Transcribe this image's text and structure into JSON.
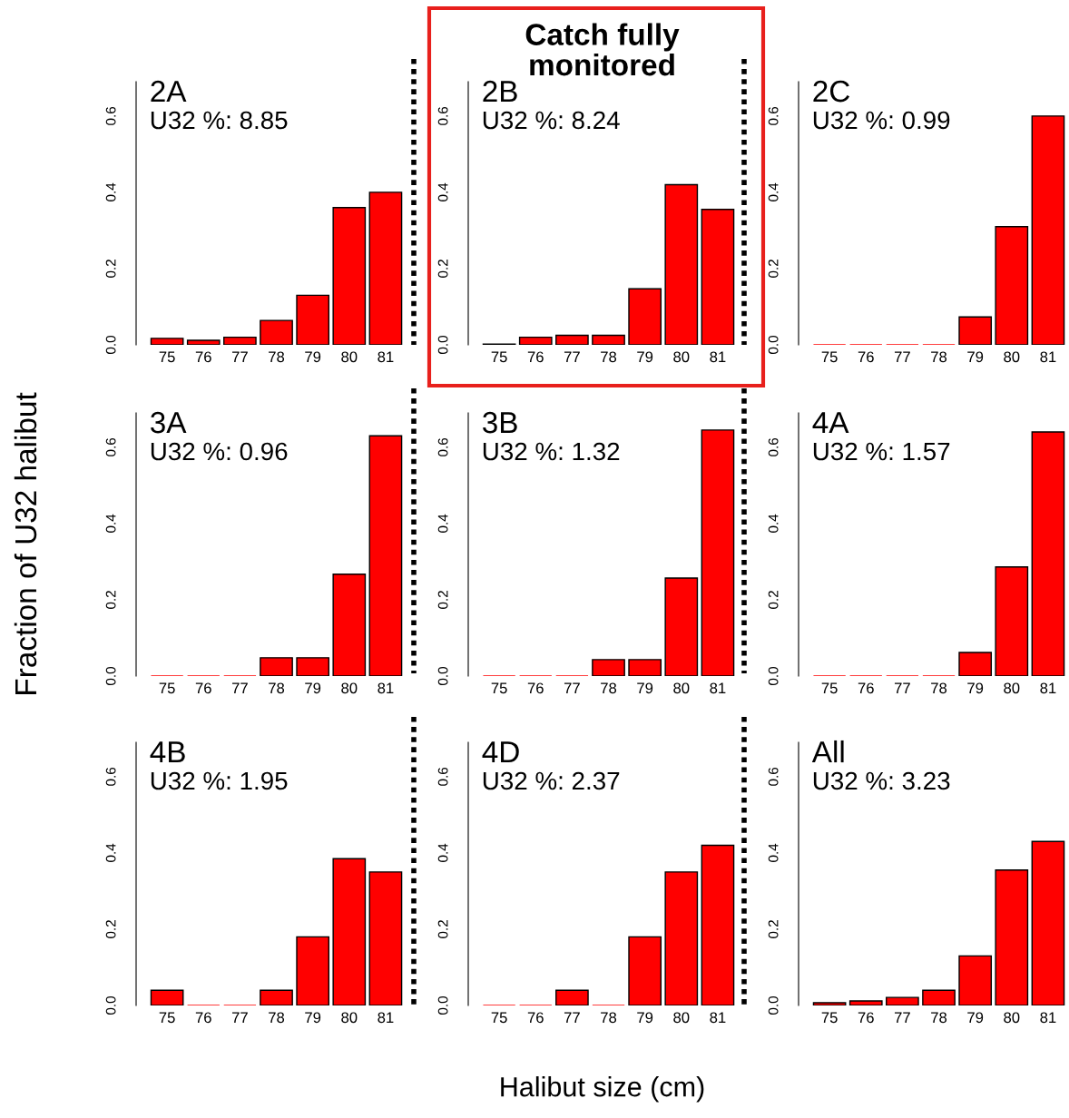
{
  "chart_data": [
    {
      "type": "bar",
      "title": "2A",
      "subtitle": "U32 %: 8.85",
      "categories": [
        "75",
        "76",
        "77",
        "78",
        "79",
        "80",
        "81"
      ],
      "values": [
        0.017,
        0.012,
        0.02,
        0.064,
        0.13,
        0.36,
        0.4
      ],
      "color": "#ff0000",
      "ylim": [
        0,
        0.69
      ],
      "yticks": [
        {
          "value": 0,
          "label": "0.0"
        },
        {
          "value": 0.2,
          "label": "0.2"
        },
        {
          "value": 0.4,
          "label": "0.4"
        },
        {
          "value": 0.6,
          "label": "0.6"
        }
      ],
      "grid": false
    },
    {
      "type": "bar",
      "title": "2B",
      "subtitle": "U32 %: 8.24",
      "annotations": [
        "Catch fully monitored"
      ],
      "categories": [
        "75",
        "76",
        "77",
        "78",
        "79",
        "80",
        "81"
      ],
      "values": [
        0.002,
        0.02,
        0.025,
        0.025,
        0.147,
        0.42,
        0.355
      ],
      "color": "#ff0000",
      "ylim": [
        0,
        0.69
      ],
      "yticks": [
        {
          "value": 0,
          "label": "0.0"
        },
        {
          "value": 0.2,
          "label": "0.2"
        },
        {
          "value": 0.4,
          "label": "0.4"
        },
        {
          "value": 0.6,
          "label": "0.6"
        }
      ],
      "grid": false
    },
    {
      "type": "bar",
      "title": "2C",
      "subtitle": "U32 %: 0.99",
      "categories": [
        "75",
        "76",
        "77",
        "78",
        "79",
        "80",
        "81"
      ],
      "values": [
        0,
        0,
        0,
        0,
        0.073,
        0.31,
        0.6
      ],
      "color": "#ff0000",
      "ylim": [
        0,
        0.69
      ],
      "yticks": [
        {
          "value": 0,
          "label": "0.0"
        },
        {
          "value": 0.2,
          "label": "0.2"
        },
        {
          "value": 0.4,
          "label": "0.4"
        },
        {
          "value": 0.6,
          "label": "0.6"
        }
      ],
      "grid": false
    },
    {
      "type": "bar",
      "title": "3A",
      "subtitle": "U32 %: 0.96",
      "ylabel": "Fraction of U32 halibut",
      "categories": [
        "75",
        "76",
        "77",
        "78",
        "79",
        "80",
        "81"
      ],
      "values": [
        0,
        0,
        0,
        0.048,
        0.048,
        0.267,
        0.63
      ],
      "color": "#ff0000",
      "ylim": [
        0,
        0.69
      ],
      "yticks": [
        {
          "value": 0,
          "label": "0.0"
        },
        {
          "value": 0.2,
          "label": "0.2"
        },
        {
          "value": 0.4,
          "label": "0.4"
        },
        {
          "value": 0.6,
          "label": "0.6"
        }
      ],
      "grid": false
    },
    {
      "type": "bar",
      "title": "3B",
      "subtitle": "U32 %: 1.32",
      "categories": [
        "75",
        "76",
        "77",
        "78",
        "79",
        "80",
        "81"
      ],
      "values": [
        0,
        0,
        0,
        0.043,
        0.043,
        0.257,
        0.645
      ],
      "color": "#ff0000",
      "ylim": [
        0,
        0.69
      ],
      "yticks": [
        {
          "value": 0,
          "label": "0.0"
        },
        {
          "value": 0.2,
          "label": "0.2"
        },
        {
          "value": 0.4,
          "label": "0.4"
        },
        {
          "value": 0.6,
          "label": "0.6"
        }
      ],
      "grid": false
    },
    {
      "type": "bar",
      "title": "4A",
      "subtitle": "U32 %: 1.57",
      "categories": [
        "75",
        "76",
        "77",
        "78",
        "79",
        "80",
        "81"
      ],
      "values": [
        0,
        0,
        0,
        0,
        0.062,
        0.286,
        0.64
      ],
      "color": "#ff0000",
      "ylim": [
        0,
        0.69
      ],
      "yticks": [
        {
          "value": 0,
          "label": "0.0"
        },
        {
          "value": 0.2,
          "label": "0.2"
        },
        {
          "value": 0.4,
          "label": "0.4"
        },
        {
          "value": 0.6,
          "label": "0.6"
        }
      ],
      "grid": false
    },
    {
      "type": "bar",
      "title": "4B",
      "subtitle": "U32 %: 1.95",
      "categories": [
        "75",
        "76",
        "77",
        "78",
        "79",
        "80",
        "81"
      ],
      "values": [
        0.04,
        0,
        0,
        0.04,
        0.18,
        0.385,
        0.35
      ],
      "color": "#ff0000",
      "ylim": [
        0,
        0.69
      ],
      "yticks": [
        {
          "value": 0,
          "label": "0.0"
        },
        {
          "value": 0.2,
          "label": "0.2"
        },
        {
          "value": 0.4,
          "label": "0.4"
        },
        {
          "value": 0.6,
          "label": "0.6"
        }
      ],
      "grid": false
    },
    {
      "type": "bar",
      "title": "4D",
      "subtitle": "U32 %: 2.37",
      "xlabel": "Halibut size (cm)",
      "categories": [
        "75",
        "76",
        "77",
        "78",
        "79",
        "80",
        "81"
      ],
      "values": [
        0,
        0,
        0.04,
        0,
        0.18,
        0.35,
        0.42
      ],
      "color": "#ff0000",
      "ylim": [
        0,
        0.69
      ],
      "yticks": [
        {
          "value": 0,
          "label": "0.0"
        },
        {
          "value": 0.2,
          "label": "0.2"
        },
        {
          "value": 0.4,
          "label": "0.4"
        },
        {
          "value": 0.6,
          "label": "0.6"
        }
      ],
      "grid": false
    },
    {
      "type": "bar",
      "title": "All",
      "subtitle": "U32 %: 3.23",
      "categories": [
        "75",
        "76",
        "77",
        "78",
        "79",
        "80",
        "81"
      ],
      "values": [
        0.007,
        0.012,
        0.021,
        0.04,
        0.13,
        0.355,
        0.43
      ],
      "color": "#ff0000",
      "ylim": [
        0,
        0.69
      ],
      "yticks": [
        {
          "value": 0,
          "label": "0.0"
        },
        {
          "value": 0.2,
          "label": "0.2"
        },
        {
          "value": 0.4,
          "label": "0.4"
        },
        {
          "value": 0.6,
          "label": "0.6"
        }
      ],
      "grid": false
    }
  ]
}
